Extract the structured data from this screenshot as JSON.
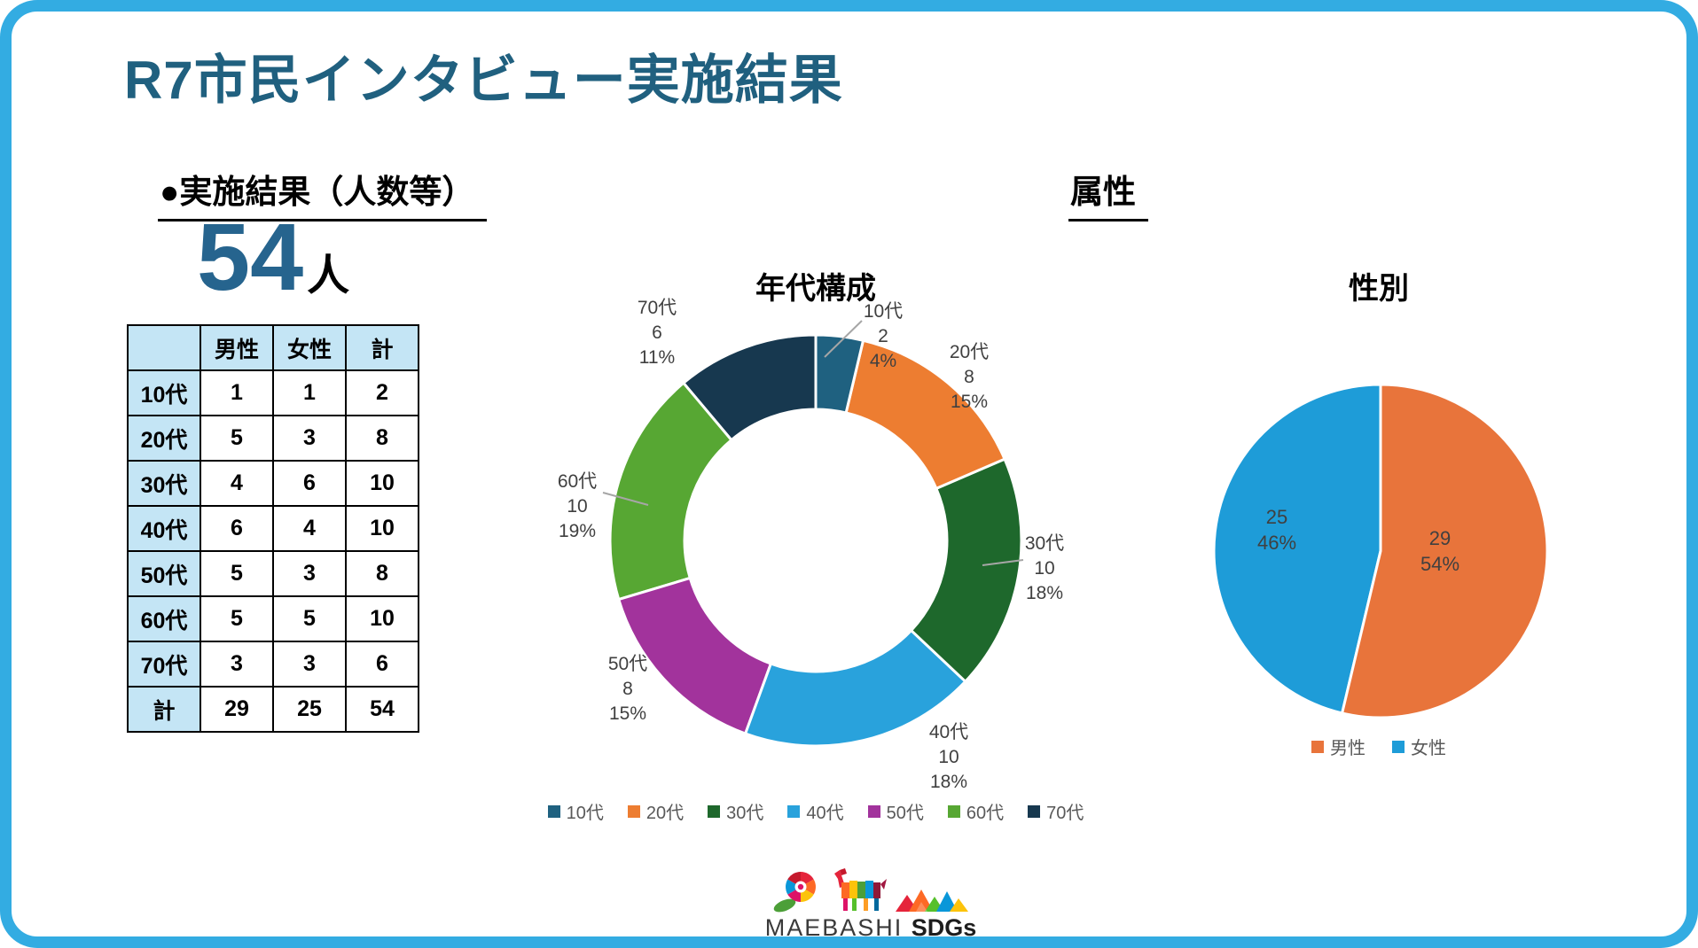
{
  "slide": {
    "title": "R7市民インタビュー実施結果"
  },
  "results": {
    "heading": "●実施結果（人数等）",
    "total_count": "54",
    "count_unit": "人",
    "table": {
      "col_headers": [
        "",
        "男性",
        "女性",
        "計"
      ],
      "rows": [
        [
          "10代",
          "1",
          "1",
          "2"
        ],
        [
          "20代",
          "5",
          "3",
          "8"
        ],
        [
          "30代",
          "4",
          "6",
          "10"
        ],
        [
          "40代",
          "6",
          "4",
          "10"
        ],
        [
          "50代",
          "5",
          "3",
          "8"
        ],
        [
          "60代",
          "5",
          "5",
          "10"
        ],
        [
          "70代",
          "3",
          "3",
          "6"
        ],
        [
          "計",
          "29",
          "25",
          "54"
        ]
      ]
    }
  },
  "attributes_heading": "属性",
  "chart_data": [
    {
      "type": "donut",
      "title": "年代構成",
      "categories": [
        "10代",
        "20代",
        "30代",
        "40代",
        "50代",
        "60代",
        "70代"
      ],
      "values": [
        2,
        8,
        10,
        10,
        8,
        10,
        6
      ],
      "percents": [
        "4%",
        "15%",
        "18%",
        "18%",
        "15%",
        "19%",
        "11%"
      ],
      "colors": [
        "#1F6180",
        "#ED7D31",
        "#1E682C",
        "#29A2DC",
        "#A2339C",
        "#57A733",
        "#17384F"
      ],
      "total": 54,
      "legend_position": "bottom"
    },
    {
      "type": "pie",
      "title": "性別",
      "categories": [
        "男性",
        "女性"
      ],
      "values": [
        29,
        25
      ],
      "percents": [
        "54%",
        "46%"
      ],
      "colors": [
        "#E8743B",
        "#1E9CD8"
      ],
      "total": 54,
      "legend_position": "bottom"
    }
  ],
  "logo": {
    "brand": "MAEBASHI",
    "suffix": "SDGs"
  },
  "colors": {
    "frame": "#33ACE2",
    "title_text": "#20607F",
    "big_number": "#26648E",
    "table_header_bg": "#C4E5F5",
    "chart_label_text": "#404040",
    "legend_text": "#595959"
  }
}
